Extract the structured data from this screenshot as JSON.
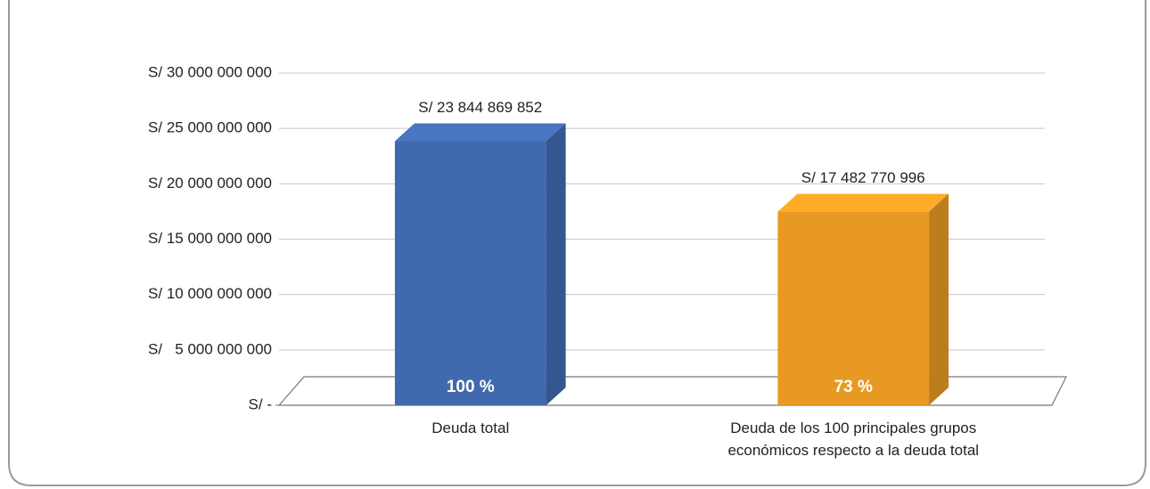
{
  "chart_data": {
    "type": "bar3d",
    "categories": [
      "Deuda total",
      "Deuda de los 100 principales grupos económicos respecto a la deuda total"
    ],
    "values": [
      23844869852,
      17482770996
    ],
    "value_labels": [
      "S/ 23 844 869 852",
      "S/ 17 482 770 996"
    ],
    "shares": [
      100,
      73
    ],
    "share_labels": [
      "100 %",
      "73 %"
    ],
    "colors": [
      "#4169ad",
      "#e89923"
    ],
    "ylim": [
      0,
      30000000000
    ],
    "yticks": [
      {
        "value": 0,
        "label": "S/ -"
      },
      {
        "value": 5000000000,
        "label": "S/   5 000 000 000"
      },
      {
        "value": 10000000000,
        "label": "S/ 10 000 000 000"
      },
      {
        "value": 15000000000,
        "label": "S/ 15 000 000 000"
      },
      {
        "value": 20000000000,
        "label": "S/ 20 000 000 000"
      },
      {
        "value": 25000000000,
        "label": "S/ 25 000 000 000"
      },
      {
        "value": 30000000000,
        "label": "S/ 30 000 000 000"
      }
    ],
    "grid": true
  }
}
